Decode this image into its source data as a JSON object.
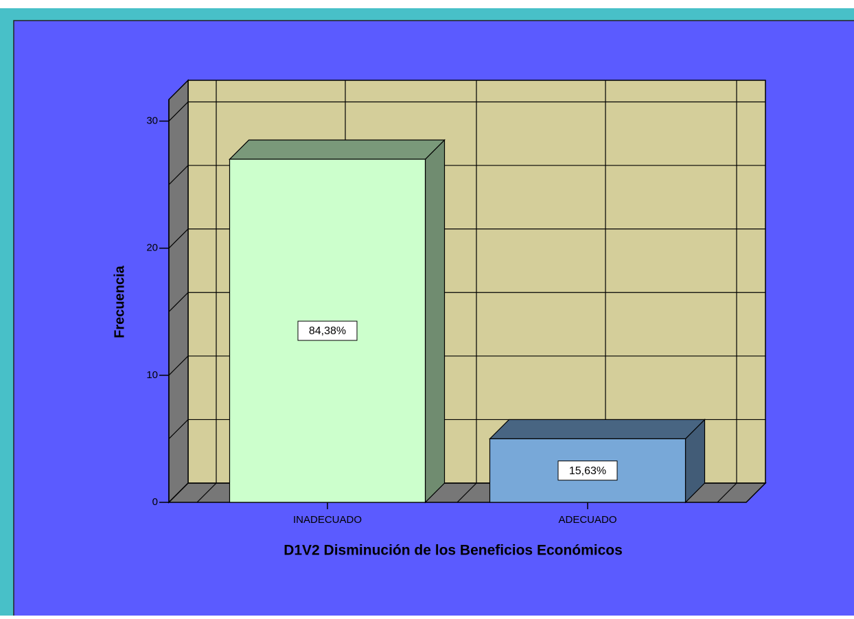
{
  "chart_data": {
    "type": "bar3d",
    "x_label": "D1V2 Disminución de los Beneficios Económicos",
    "y_label": "Frecuencia",
    "categories": [
      "INADECUADO",
      "ADECUADO"
    ],
    "values": [
      27,
      5
    ],
    "colors": [
      "#CCFFCC",
      "#78A8D8"
    ],
    "data_labels": [
      {
        "value": 84.38,
        "label": "84,38%"
      },
      {
        "value": 15.63,
        "label": "15,63%"
      }
    ],
    "ylim": [
      0,
      31.7
    ],
    "yticks": [
      0,
      10,
      20,
      30
    ],
    "minor_yticks": [
      5,
      15,
      25
    ],
    "grid": true
  }
}
